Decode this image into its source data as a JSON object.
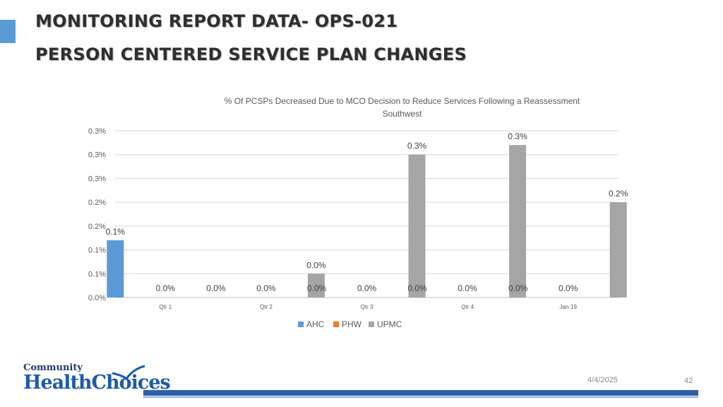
{
  "slide": {
    "title_line1": "MONITORING REPORT DATA- OPS-021",
    "title_line2": "PERSON CENTERED SERVICE PLAN CHANGES",
    "date": "4/4/2025",
    "page_number": "42",
    "logo_line1": "Community",
    "logo_line2": "HealthChoices"
  },
  "colors": {
    "accent": "#5b9bd5",
    "footer_bar": "#2e5fa8"
  },
  "chart_data": {
    "type": "bar",
    "title": "% Of PCSPs Decreased Due to MCO Decision to Reduce Services Following a Reassessment",
    "subtitle": "Southwest",
    "categories": [
      "Qtr 1",
      "Qtr 2",
      "Qtr 3",
      "Qtr 4",
      "Jan-19"
    ],
    "series": [
      {
        "name": "AHC",
        "color": "#5b9bd5",
        "values": [
          0.12,
          0.0,
          0.0,
          0.0,
          0.0
        ],
        "labels": [
          "0.1%",
          "0.0%",
          "0.0%",
          "0.0%",
          "0.0%"
        ]
      },
      {
        "name": "PHW",
        "color": "#ed7d31",
        "values": [
          0.0,
          0.0,
          0.0,
          0.0,
          0.0
        ],
        "labels": [
          "0.0%",
          "0.0%",
          "0.0%",
          "0.0%",
          "0.0%"
        ]
      },
      {
        "name": "UPMC",
        "color": "#a5a5a5",
        "values": [
          null,
          0.05,
          0.3,
          0.32,
          0.2
        ],
        "labels": [
          "",
          "0.0%",
          "0.3%",
          "0.3%",
          "0.2%"
        ]
      }
    ],
    "ylim": [
      0,
      0.35
    ],
    "yticks": [
      0,
      0.05,
      0.1,
      0.15,
      0.2,
      0.25,
      0.3,
      0.35
    ],
    "ytick_labels": [
      "0.0%",
      "0.1%",
      "0.1%",
      "0.2%",
      "0.2%",
      "0.3%",
      "0.3%",
      "0.3%"
    ],
    "grid": true,
    "legend_position": "bottom"
  }
}
